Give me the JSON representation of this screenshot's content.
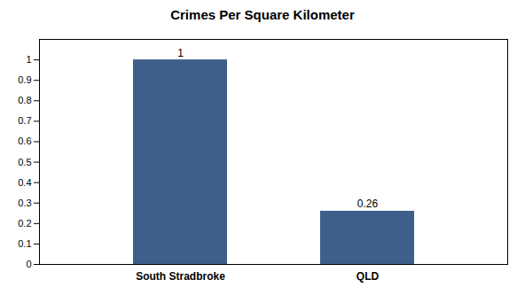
{
  "chart_data": {
    "type": "bar",
    "title": "Crimes Per Square Kilometer",
    "categories": [
      "South Stradbroke",
      "QLD"
    ],
    "values": [
      1.0,
      0.26
    ],
    "color": "#3d5f8a",
    "ylim": [
      0,
      1.1
    ],
    "yticks": [
      0,
      0.1,
      0.2,
      0.3,
      0.4,
      0.5,
      0.6,
      0.7,
      0.8,
      0.9,
      1.0
    ],
    "grid": false,
    "data_labels": true
  }
}
